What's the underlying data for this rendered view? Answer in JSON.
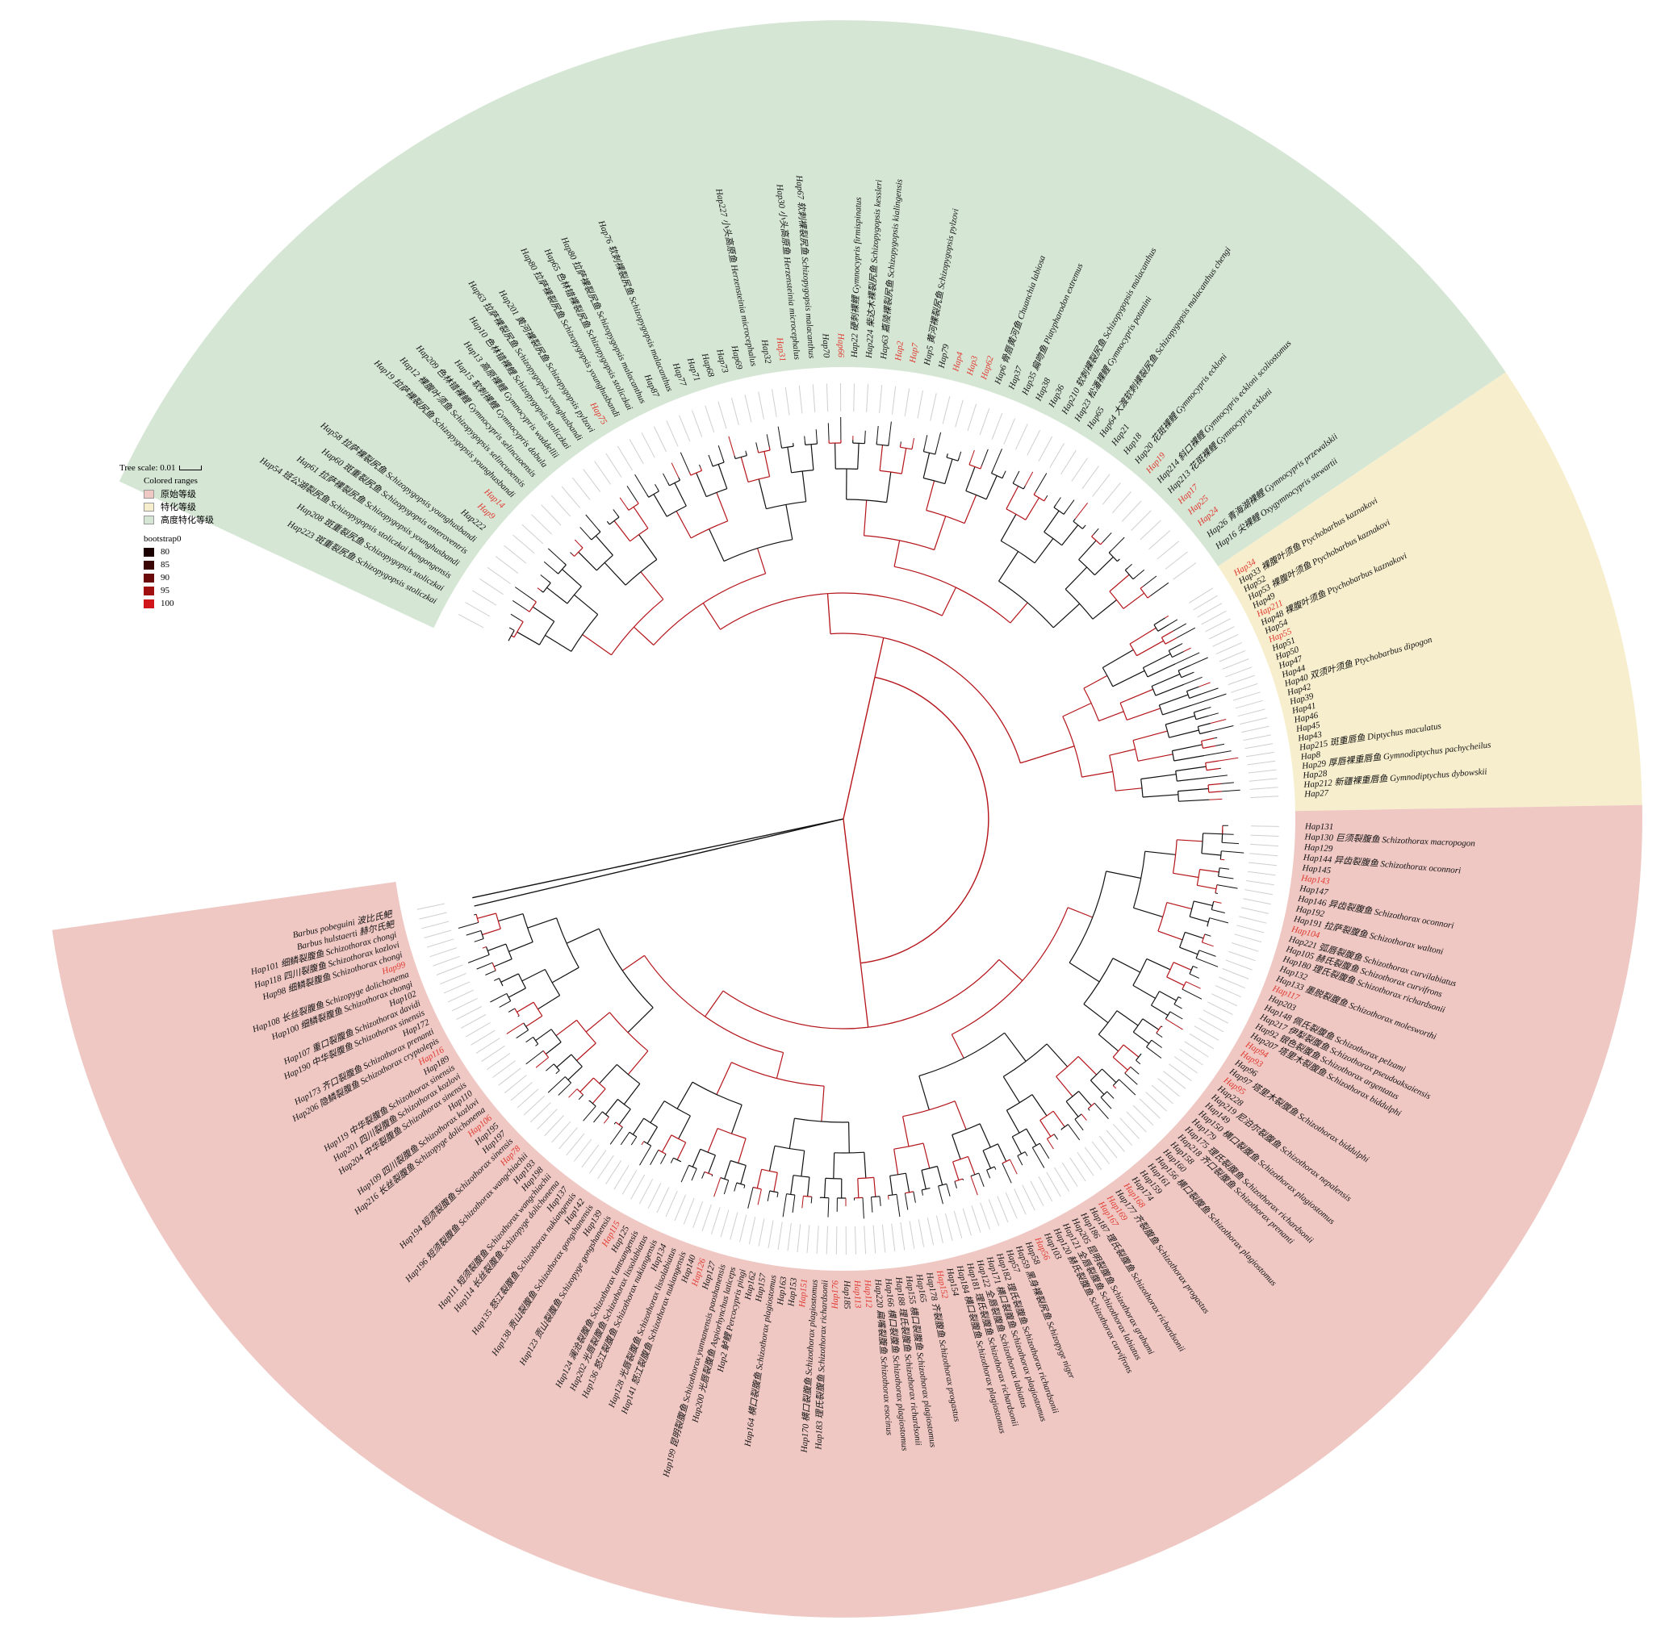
{
  "legend": {
    "tree_scale": "Tree scale: 0.01",
    "colored_ranges_title": "Colored ranges",
    "ranges": [
      {
        "label": "原始等级",
        "color": "#efc8c4"
      },
      {
        "label": "特化等级",
        "color": "#f7eecd"
      },
      {
        "label": "高度特化等级",
        "color": "#d5e6d5"
      }
    ],
    "bootstrap_title": "bootstrap0",
    "bootstrap": [
      {
        "label": "80",
        "color": "#1a0000"
      },
      {
        "label": "85",
        "color": "#3a0505"
      },
      {
        "label": "90",
        "color": "#6b0a0a"
      },
      {
        "label": "95",
        "color": "#a01010"
      },
      {
        "label": "100",
        "color": "#d0161b"
      }
    ]
  },
  "colors": {
    "primitive": "#efc8c4",
    "specialized": "#f7eecd",
    "highly_specialized": "#d5e6d5",
    "red_label": "#e0382f",
    "red_branch": "#b4141a",
    "black_branch": "#111111"
  },
  "sectors": [
    {
      "range": "highly_specialized",
      "start_deg": -155,
      "end_deg": -34
    },
    {
      "range": "specialized",
      "start_deg": -34,
      "end_deg": -1
    },
    {
      "range": "primitive",
      "start_deg": -1,
      "end_deg": 172
    }
  ],
  "labels_green": [
    {
      "text": "Hap223 斑重裂尻鱼 Schizopygopsis stoliczkai",
      "red": false
    },
    {
      "text": "Hap208 斑重裂尻鱼 Schizopygopsis stoliczkai",
      "red": false
    },
    {
      "text": "Hap54 班公湖裂尻鱼 Schizopygopsis stoliczkai bangongensis",
      "red": false
    },
    {
      "text": "Hap61 拉萨裸裂尻鱼 Schizopygopsis younghusbandi",
      "red": false
    },
    {
      "text": "Hap60 斑重裂尻鱼 Schizopygopsis anteroventris",
      "red": false
    },
    {
      "text": "Hap58 拉萨裸裂尻鱼 Schizopygopsis younghusbandi",
      "red": false
    },
    {
      "text": "Hap222",
      "red": false
    },
    {
      "text": "Hap9",
      "red": true
    },
    {
      "text": "Hap14",
      "red": true
    },
    {
      "text": "Hap19 拉萨裸裂尻鱼 Schizopygopsis younghusbandi",
      "red": false
    },
    {
      "text": "Hap12 裸腹叶须鱼 Schizopygopsis selincuoensis",
      "red": false
    },
    {
      "text": "Hap209 色林错裸鲤 Gymnocypris selincuoensis",
      "red": false
    },
    {
      "text": "Hap15 软刺裸鲤 Gymnocypris dobula",
      "red": false
    },
    {
      "text": "Hap13 高原裸鲤 Gymnocypris waddellii",
      "red": false
    },
    {
      "text": "Hap10 色林错裸鲤 Schizopygopsis stoliczkai",
      "red": false
    },
    {
      "text": "Hap63 拉萨裸裂尻鱼 Schizopygopsis younghusbandi",
      "red": false
    },
    {
      "text": "Hap201 黄河裸裂尻鱼 Schizopygopsis pylzovi",
      "red": false
    },
    {
      "text": "Hap75",
      "red": true
    },
    {
      "text": "Hap80 拉萨裸裂尻鱼 Schizopygopsis younghusbandi",
      "red": false
    },
    {
      "text": "Hap65 色林错裸裂尻鱼 Schizopygopsis stoliczkai",
      "red": false
    },
    {
      "text": "Hap80 拉萨裸裂尻鱼 Schizopygopsis malacanthus",
      "red": false
    },
    {
      "text": "Hap87",
      "red": false
    },
    {
      "text": "Hap76 软刺裸裂尻鱼 Schizopygopsis malacanthus",
      "red": false
    },
    {
      "text": "Hap77",
      "red": false
    },
    {
      "text": "Hap71",
      "red": false
    },
    {
      "text": "Hap68",
      "red": false
    },
    {
      "text": "Hap73",
      "red": false
    },
    {
      "text": "Hap69",
      "red": false
    },
    {
      "text": "Hap227 小头高原鱼 Herzensteinia microcephalus",
      "red": false
    },
    {
      "text": "Hap32",
      "red": false
    },
    {
      "text": "Hap31",
      "red": true
    },
    {
      "text": "Hap30 小头高原鱼 Herzensteinia microcephalus",
      "red": false
    },
    {
      "text": "Hap67 软刺裸裂尻鱼 Schizopygopsis malacanthus",
      "red": false
    },
    {
      "text": "Hap70",
      "red": false
    },
    {
      "text": "Hap66",
      "red": true
    },
    {
      "text": "Hap22 硬刺裸鲤 Gymnocypris firmispinatus",
      "red": false
    },
    {
      "text": "Hap224 柴达木裸裂尻鱼 Schizopygopsis kessleri",
      "red": false
    },
    {
      "text": "Hap63 嘉陵裸裂尻鱼 Schizopygopsis kialingensis",
      "red": false
    },
    {
      "text": "Hap2",
      "red": true
    },
    {
      "text": "Hap7",
      "red": true
    },
    {
      "text": "Hap5 黄河裸裂尻鱼 Schizopygopsis pylzovi",
      "red": false
    },
    {
      "text": "Hap79",
      "red": false
    },
    {
      "text": "Hap4",
      "red": true
    },
    {
      "text": "Hap3",
      "red": true
    },
    {
      "text": "Hap62",
      "red": true
    },
    {
      "text": "Hap6 骨唇黄河鱼 Chuanchia labiosa",
      "red": false
    },
    {
      "text": "Hap37",
      "red": false
    },
    {
      "text": "Hap35 扁吻鱼 Platypharodon extremus",
      "red": false
    },
    {
      "text": "Hap38",
      "red": false
    },
    {
      "text": "Hap36",
      "red": false
    },
    {
      "text": "Hap210 软刺裸裂尻鱼 Schizopygopsis malacanthus",
      "red": false
    },
    {
      "text": "Hap23 松潘裸鲤 Gymnocypris potanini",
      "red": false
    },
    {
      "text": "Hap65",
      "red": false
    },
    {
      "text": "Hap64 大渡软刺裸裂尻鱼 Schizopygopsis malacanthus chengi",
      "red": false
    },
    {
      "text": "Hap21",
      "red": false
    },
    {
      "text": "Hap18",
      "red": false
    },
    {
      "text": "Hap20 花斑裸鲤 Gymnocypris eckloni",
      "red": false
    },
    {
      "text": "Hap19",
      "red": true
    },
    {
      "text": "Hap214 斜口裸鲤 Gymnocypris eckloni scoliostomus",
      "red": false
    },
    {
      "text": "Hap213 花斑裸鲤 Gymnocypris eckloni",
      "red": false
    },
    {
      "text": "Hap17",
      "red": true
    },
    {
      "text": "Hap25",
      "red": true
    },
    {
      "text": "Hap24",
      "red": true
    },
    {
      "text": "Hap26 青海湖裸鲤 Gymnocypris przewalskii",
      "red": false
    },
    {
      "text": "Hap16 尖裸鲤 Oxygymnocypris stewartii",
      "red": false
    }
  ],
  "labels_yellow": [
    {
      "text": "Hap34",
      "red": true
    },
    {
      "text": "Hap33 裸腹叶须鱼 Ptychobarbus kaznakovi",
      "red": false
    },
    {
      "text": "Hap52",
      "red": false
    },
    {
      "text": "Hap53 裸腹叶须鱼 Ptychobarbus kaznakovi",
      "red": false
    },
    {
      "text": "Hap49",
      "red": false
    },
    {
      "text": "Hap211",
      "red": true
    },
    {
      "text": "Hap48 裸腹叶须鱼 Ptychobarbus kaznakovi",
      "red": false
    },
    {
      "text": "Hap54",
      "red": false
    },
    {
      "text": "Hap55",
      "red": true
    },
    {
      "text": "Hap51",
      "red": false
    },
    {
      "text": "Hap50",
      "red": false
    },
    {
      "text": "Hap47",
      "red": false
    },
    {
      "text": "Hap44",
      "red": false
    },
    {
      "text": "Hap40 双须叶须鱼 Ptychobarbus dipogon",
      "red": false
    },
    {
      "text": "Hap42",
      "red": false
    },
    {
      "text": "Hap39",
      "red": false
    },
    {
      "text": "Hap41",
      "red": false
    },
    {
      "text": "Hap46",
      "red": false
    },
    {
      "text": "Hap45",
      "red": false
    },
    {
      "text": "Hap43",
      "red": false
    },
    {
      "text": "Hap215 斑重唇鱼 Diptychus maculatus",
      "red": false
    },
    {
      "text": "Hap8",
      "red": false
    },
    {
      "text": "Hap29 厚唇裸重唇鱼 Gymnodiptychus pachycheilus",
      "red": false
    },
    {
      "text": "Hap28",
      "red": false
    },
    {
      "text": "Hap212 新疆裸重唇鱼 Gymnodiptychus dybowskii",
      "red": false
    },
    {
      "text": "Hap27",
      "red": false
    }
  ],
  "labels_pink": [
    {
      "text": "Hap131",
      "red": false
    },
    {
      "text": "Hap130 巨须裂腹鱼 Schizothorax macropogon",
      "red": false
    },
    {
      "text": "Hap129",
      "red": false
    },
    {
      "text": "Hap144 异齿裂腹鱼 Schizothorax oconnori",
      "red": false
    },
    {
      "text": "Hap145",
      "red": false
    },
    {
      "text": "Hap143",
      "red": true
    },
    {
      "text": "Hap147",
      "red": false
    },
    {
      "text": "Hap146 异齿裂腹鱼 Schizothorax oconnori",
      "red": false
    },
    {
      "text": "Hap192",
      "red": false
    },
    {
      "text": "Hap191 拉萨裂腹鱼 Schizothorax waltoni",
      "red": false
    },
    {
      "text": "Hap104",
      "red": true
    },
    {
      "text": "Hap221 弧唇裂腹鱼 Schizothorax curvilabiatus",
      "red": false
    },
    {
      "text": "Hap105 赫氏裂腹鱼 Schizothorax curvifrons",
      "red": false
    },
    {
      "text": "Hap180 理氏裂腹鱼 Schizothorax richardsonii",
      "red": false
    },
    {
      "text": "Hap132",
      "red": false
    },
    {
      "text": "Hap133 墨脱裂腹鱼 Schizothorax molesworthi",
      "red": false
    },
    {
      "text": "Hap117",
      "red": true
    },
    {
      "text": "Hap203",
      "red": false
    },
    {
      "text": "Hap148 佩氏裂腹鱼 Schizothorax pelzami",
      "red": false
    },
    {
      "text": "Hap217 伊犁裂腹鱼 Schizothorax pseudoaksaiensis",
      "red": false
    },
    {
      "text": "Hap92 银色裂腹鱼 Schizothorax argentatus",
      "red": false
    },
    {
      "text": "Hap207 塔里木裂腹鱼 Schizothorax biddulphi",
      "red": false
    },
    {
      "text": "Hap94",
      "red": true
    },
    {
      "text": "Hap93",
      "red": true
    },
    {
      "text": "Hap96",
      "red": false
    },
    {
      "text": "Hap97 塔里木裂腹鱼 Schizothorax biddulphi",
      "red": false
    },
    {
      "text": "Hap95",
      "red": true
    },
    {
      "text": "Hap228",
      "red": false
    },
    {
      "text": "Hap219 尼泊尔裂腹鱼 Schizothorax nepalensis",
      "red": false
    },
    {
      "text": "Hap149",
      "red": false
    },
    {
      "text": "Hap150 横口裂腹鱼 Schizothorax plagiostomus",
      "red": false
    },
    {
      "text": "Hap179",
      "red": false
    },
    {
      "text": "Hap175 理氏裂腹鱼 Schizothorax richardsonii",
      "red": false
    },
    {
      "text": "Hap218 齐口裂腹鱼 Schizothorax prenanti",
      "red": false
    },
    {
      "text": "Hap158",
      "red": false
    },
    {
      "text": "Hap160",
      "red": false
    },
    {
      "text": "Hap156 横口裂腹鱼 Schizothorax plagiostomus",
      "red": false
    },
    {
      "text": "Hap161",
      "red": false
    },
    {
      "text": "Hap159",
      "red": false
    },
    {
      "text": "Hap174",
      "red": false
    },
    {
      "text": "Hap168",
      "red": true
    },
    {
      "text": "Hap177 齐裂腹鱼 Schizothorax progastus",
      "red": false
    },
    {
      "text": "Hap169",
      "red": true
    },
    {
      "text": "Hap167",
      "red": true
    },
    {
      "text": "Hap187 理氏裂腹鱼 Schizothorax richardsonii",
      "red": false
    },
    {
      "text": "Hap186",
      "red": false
    },
    {
      "text": "Hap205 昆明裂腹鱼 Schizothorax grahami",
      "red": false
    },
    {
      "text": "Hap121 全唇裂腹鱼 Schizothorax labiatus",
      "red": false
    },
    {
      "text": "Hap120 赫氏裂腹鱼 Schizothorax curvifrons",
      "red": false
    },
    {
      "text": "Hap103",
      "red": false
    },
    {
      "text": "Hap56",
      "red": true
    },
    {
      "text": "Hap58",
      "red": false
    },
    {
      "text": "Hap59 黑身裸裂尻鱼 Schizopyge niger",
      "red": false
    },
    {
      "text": "Hap57",
      "red": false
    },
    {
      "text": "Hap182 理氏裂腹鱼 Schizothorax richardsonii",
      "red": false
    },
    {
      "text": "Hap171 横口裂腹鱼 Schizothorax plagiostomus",
      "red": false
    },
    {
      "text": "Hap122 全唇裂腹鱼 Schizothorax labiatus",
      "red": false
    },
    {
      "text": "Hap181 理氏裂腹鱼 Schizothorax richardsonii",
      "red": false
    },
    {
      "text": "Hap184 横口裂腹鱼 Schizothorax plagiostomus",
      "red": false
    },
    {
      "text": "Hap154",
      "red": false
    },
    {
      "text": "Hap152",
      "red": true
    },
    {
      "text": "Hap178 齐裂腹鱼 Schizothorax progastus",
      "red": false
    },
    {
      "text": "Hap165",
      "red": false
    },
    {
      "text": "Hap155 横口裂腹鱼 Schizothorax plagiostomus",
      "red": false
    },
    {
      "text": "Hap188 理氏裂腹鱼 Schizothorax richardsonii",
      "red": false
    },
    {
      "text": "Hap166 横口裂腹鱼 Schizothorax plagiostomus",
      "red": false
    },
    {
      "text": "Hap220 扁嘴裂腹鱼 Schizothorax esocinus",
      "red": false
    },
    {
      "text": "Hap112",
      "red": true
    },
    {
      "text": "Hap113",
      "red": true
    },
    {
      "text": "Hap185",
      "red": false
    },
    {
      "text": "Hap176",
      "red": true
    },
    {
      "text": "Hap183 理氏裂腹鱼 Schizothorax richardsonii",
      "red": false
    },
    {
      "text": "Hap170 横口裂腹鱼 Schizothorax plagiostomus",
      "red": false
    },
    {
      "text": "Hap151",
      "red": true
    },
    {
      "text": "Hap153",
      "red": false
    },
    {
      "text": "Hap163",
      "red": false
    },
    {
      "text": "Hap164 横口裂腹鱼 Schizothorax plagiostomus",
      "red": false
    },
    {
      "text": "Hap157",
      "red": false
    },
    {
      "text": "Hap162",
      "red": false
    },
    {
      "text": "Hap2 鲈鲤 Percocypris pingi",
      "red": false
    },
    {
      "text": "Hap200 光唇裂腹鱼 Aspiorhynchus laticeps",
      "red": false
    },
    {
      "text": "Hap199 昆明裂腹鱼 Schizothorax yunnanensis paoshanensis",
      "red": false
    },
    {
      "text": "Hap127",
      "red": false
    },
    {
      "text": "Hap126",
      "red": true
    },
    {
      "text": "Hap140",
      "red": false
    },
    {
      "text": "Hap141 怒江裂腹鱼 Schizothorax nukiangensis",
      "red": false
    },
    {
      "text": "Hap128 光唇裂腹鱼 Schizothorax lissolabiatus",
      "red": false
    },
    {
      "text": "Hap134",
      "red": false
    },
    {
      "text": "Hap136 怒江裂腹鱼 Schizothorax nukiangensis",
      "red": false
    },
    {
      "text": "Hap202 光唇裂腹鱼 Schizothorax lissolabiatus",
      "red": false
    },
    {
      "text": "Hap124 澜沧裂腹鱼 Schizothorax lantsangensis",
      "red": false
    },
    {
      "text": "Hap125",
      "red": false
    },
    {
      "text": "Hap115",
      "red": true
    },
    {
      "text": "Hap123 贡山裂腹鱼 Schizopyge gongshanensis",
      "red": false
    },
    {
      "text": "Hap139",
      "red": false
    },
    {
      "text": "Hap138 贡山裂腹鱼 Schizothorax gongshanensis",
      "red": false
    },
    {
      "text": "Hap142",
      "red": false
    },
    {
      "text": "Hap135 怒江裂腹鱼 Schizothorax nukiangensis",
      "red": false
    },
    {
      "text": "Hap137",
      "red": false
    },
    {
      "text": "Hap114 长丝裂腹鱼 Schizopyge dolichonema",
      "red": false
    },
    {
      "text": "Hap111 短须裂腹鱼 Schizothorax wangchiachii",
      "red": false
    },
    {
      "text": "Hap198",
      "red": false
    },
    {
      "text": "Hap193",
      "red": false
    },
    {
      "text": "Hap196 短须裂腹鱼 Schizothorax wangchiachii",
      "red": false
    },
    {
      "text": "Hap78",
      "red": true
    },
    {
      "text": "Hap194 短须裂腹鱼 Schizothorax sinensis",
      "red": false
    },
    {
      "text": "Hap197",
      "red": false
    },
    {
      "text": "Hap195",
      "red": false
    },
    {
      "text": "Hap106",
      "red": true
    },
    {
      "text": "Hap216 长丝裂腹鱼 Schizopyge dolichonema",
      "red": false
    },
    {
      "text": "Hap109 四川裂腹鱼 Schizothorax kozlovi",
      "red": false
    },
    {
      "text": "Hap110",
      "red": false
    },
    {
      "text": "Hap204 中华裂腹鱼 Schizothorax sinensis",
      "red": false
    },
    {
      "text": "Hap201 四川裂腹鱼 Schizothorax kozlovi",
      "red": false
    },
    {
      "text": "Hap119 中华裂腹鱼 Schizothorax sinensis",
      "red": false
    },
    {
      "text": "Hap189",
      "red": false
    },
    {
      "text": "Hap116",
      "red": true
    },
    {
      "text": "Hap206 隐鳞裂腹鱼 Schizothorax cryptolepis",
      "red": false
    },
    {
      "text": "Hap173 齐口裂腹鱼 Schizothorax prenanti",
      "red": false
    },
    {
      "text": "Hap172",
      "red": false
    },
    {
      "text": "Hap190 中华裂腹鱼 Schizothorax sinensis",
      "red": false
    },
    {
      "text": "Hap107 重口裂腹鱼 Schizothorax davidi",
      "red": false
    },
    {
      "text": "Hap102",
      "red": false
    },
    {
      "text": "Hap100 细鳞裂腹鱼 Schizothorax chongi",
      "red": false
    },
    {
      "text": "Hap108 长丝裂腹鱼 Schizopyge dolichonema",
      "red": false
    },
    {
      "text": "Hap99",
      "red": true
    },
    {
      "text": "Hap98 细鳞裂腹鱼 Schizothorax chongi",
      "red": false
    },
    {
      "text": "Hap118 四川裂腹鱼 Schizothorax kozlovi",
      "red": false
    },
    {
      "text": "Hap101 细鳞裂腹鱼 Schizothorax chongi",
      "red": false
    },
    {
      "text": "Barbus hulstaerti 赫尔氏鲃",
      "red": false
    },
    {
      "text": "Barbus pobeguini 波比氏鲃",
      "red": false
    }
  ]
}
